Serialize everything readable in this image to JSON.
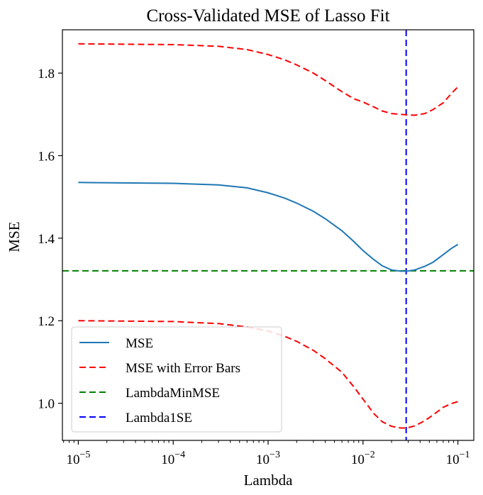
{
  "chart_data": {
    "type": "line",
    "title": "Cross-Validated MSE of Lasso Fit",
    "xlabel": "Lambda",
    "ylabel": "MSE",
    "xscale": "log",
    "xlim": [
      6.8e-06,
      0.147
    ],
    "ylim": [
      0.91,
      1.905
    ],
    "x_ticks": [
      {
        "value": 1e-05,
        "base": "10",
        "exp": "−5"
      },
      {
        "value": 0.0001,
        "base": "10",
        "exp": "−4"
      },
      {
        "value": 0.001,
        "base": "10",
        "exp": "−3"
      },
      {
        "value": 0.01,
        "base": "10",
        "exp": "−2"
      },
      {
        "value": 0.1,
        "base": "10",
        "exp": "−1"
      }
    ],
    "y_ticks": [
      "1.0",
      "1.2",
      "1.4",
      "1.6",
      "1.8"
    ],
    "grid": false,
    "legend_position": "bottom-left",
    "series": [
      {
        "name": "MSE",
        "color": "#1f77b4",
        "style": "solid",
        "x": [
          1e-05,
          0.0001,
          0.0003,
          0.0006,
          0.001,
          0.0015,
          0.002,
          0.003,
          0.004,
          0.006,
          0.008,
          0.01,
          0.013,
          0.016,
          0.02,
          0.025,
          0.029,
          0.035,
          0.045,
          0.055,
          0.07,
          0.085,
          0.1
        ],
        "y": [
          1.535,
          1.533,
          1.529,
          1.522,
          1.51,
          1.497,
          1.485,
          1.465,
          1.447,
          1.418,
          1.392,
          1.37,
          1.348,
          1.333,
          1.323,
          1.32,
          1.32,
          1.323,
          1.332,
          1.342,
          1.36,
          1.375,
          1.385
        ]
      },
      {
        "name": "MSE with Error Bars",
        "color": "#ff0000",
        "style": "dashed",
        "x": [
          1e-05,
          0.0001,
          0.0003,
          0.0006,
          0.001,
          0.0015,
          0.002,
          0.003,
          0.004,
          0.006,
          0.008,
          0.01,
          0.013,
          0.016,
          0.02,
          0.025,
          0.029,
          0.035,
          0.045,
          0.055,
          0.07,
          0.085,
          0.1
        ],
        "y": [
          1.871,
          1.869,
          1.865,
          1.857,
          1.845,
          1.832,
          1.82,
          1.8,
          1.782,
          1.755,
          1.738,
          1.73,
          1.718,
          1.708,
          1.702,
          1.7,
          1.699,
          1.698,
          1.702,
          1.712,
          1.728,
          1.75,
          1.767
        ]
      },
      {
        "name": "",
        "color": "#ff0000",
        "style": "dashed",
        "x": [
          1e-05,
          0.0001,
          0.0003,
          0.0006,
          0.001,
          0.0015,
          0.002,
          0.003,
          0.004,
          0.006,
          0.008,
          0.01,
          0.013,
          0.016,
          0.02,
          0.025,
          0.029,
          0.035,
          0.045,
          0.055,
          0.07,
          0.085,
          0.1
        ],
        "y": [
          1.2,
          1.198,
          1.193,
          1.185,
          1.175,
          1.162,
          1.15,
          1.128,
          1.108,
          1.075,
          1.04,
          1.01,
          0.975,
          0.955,
          0.944,
          0.94,
          0.94,
          0.945,
          0.958,
          0.972,
          0.99,
          0.999,
          1.004
        ]
      }
    ],
    "reference_lines": [
      {
        "name": "LambdaMinMSE",
        "orientation": "horizontal",
        "value": 1.321,
        "color": "#008000",
        "style": "dashed"
      },
      {
        "name": "Lambda1SE",
        "orientation": "vertical",
        "value": 0.0285,
        "color": "#0000ff",
        "style": "dashed"
      }
    ],
    "legend": [
      {
        "label": "MSE",
        "color": "#1f77b4",
        "style": "solid"
      },
      {
        "label": "MSE with Error Bars",
        "color": "#ff0000",
        "style": "dashed"
      },
      {
        "label": "LambdaMinMSE",
        "color": "#008000",
        "style": "dashed"
      },
      {
        "label": "Lambda1SE",
        "color": "#0000ff",
        "style": "dashed"
      }
    ]
  }
}
